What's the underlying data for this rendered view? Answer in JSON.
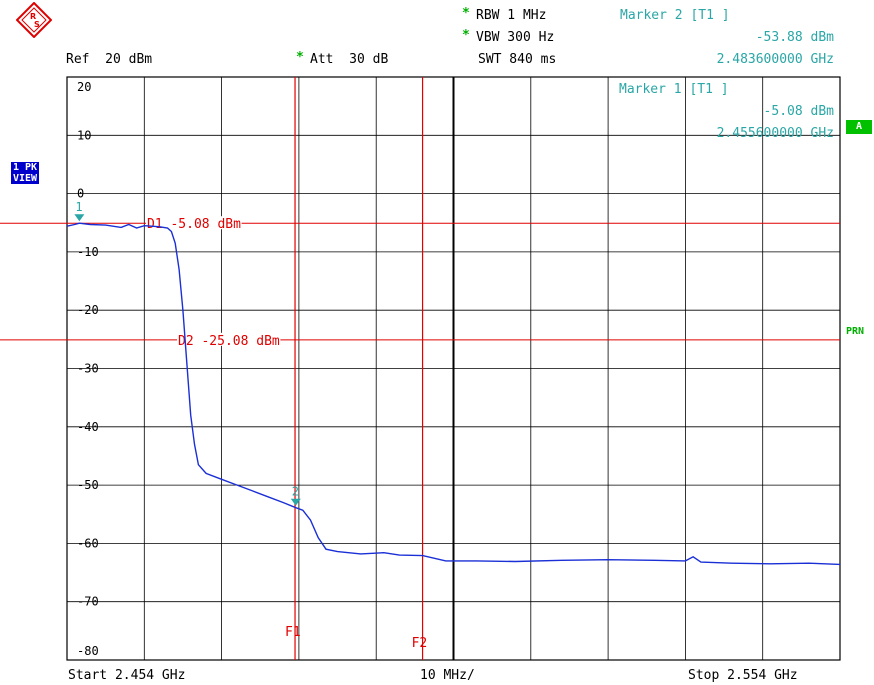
{
  "header": {
    "rbw": "RBW 1 MHz",
    "vbw": "VBW 300 Hz",
    "swt": "SWT 840 ms",
    "ref": "Ref  20 dBm",
    "att": "Att  30 dB",
    "rbw_star": "*",
    "vbw_star": "*",
    "att_star": "*",
    "marker2_title": "Marker 2 [T1 ]",
    "marker2_level": "-53.88 dBm",
    "marker2_freq": "2.483600000 GHz",
    "marker1_title": "Marker 1 [T1 ]",
    "marker1_level": "-5.08 dBm",
    "marker1_freq": "2.455600000 GHz"
  },
  "side_badges": {
    "trace_mode_line1": "1 PK",
    "trace_mode_line2": "VIEW",
    "trace_a": "A",
    "prn": "PRN"
  },
  "footer": {
    "start": "Start 2.454 GHz",
    "span_per_div": "10 MHz/",
    "stop": "Stop 2.554 GHz"
  },
  "colors": {
    "trace": "#1a2fd6",
    "display_line": "#e00000",
    "marker": "#2aa6a6",
    "grid": "#000000",
    "badge_blue": "#0000cc",
    "badge_green": "#00c000"
  },
  "chart_data": {
    "type": "line",
    "title": "",
    "xlabel": "",
    "ylabel": "",
    "xlim": [
      2.454,
      2.554
    ],
    "ylim": [
      -80,
      20
    ],
    "x_unit": "GHz",
    "y_unit": "dBm",
    "grid": true,
    "y_tick_labels": [
      "20",
      "10",
      "0",
      "-10",
      "-20",
      "-30",
      "-40",
      "-50",
      "-60",
      "-70",
      "-80"
    ],
    "display_lines": [
      {
        "label": "D1 -5.08 dBm",
        "y": -5.08
      },
      {
        "label": "D2 -25.08 dBm",
        "y": -25.08
      }
    ],
    "frequency_lines": [
      {
        "label": "F1",
        "x": 2.4835
      },
      {
        "label": "F2",
        "x": 2.5
      }
    ],
    "markers": [
      {
        "label": "1",
        "x": 2.4556,
        "y": -5.08
      },
      {
        "label": "2",
        "x": 2.4836,
        "y": -53.88
      }
    ],
    "series": [
      {
        "x": [
          2.454,
          2.455,
          2.4556,
          2.457,
          2.459,
          2.461,
          2.462,
          2.463,
          2.464,
          2.465,
          2.466,
          2.467,
          2.4675,
          2.468,
          2.4685,
          2.469,
          2.4695,
          2.47,
          2.4705,
          2.471,
          2.472,
          2.474,
          2.476,
          2.478,
          2.48,
          2.482,
          2.4836,
          2.4845,
          2.4855,
          2.4865,
          2.4875,
          2.489,
          2.492,
          2.495,
          2.497,
          2.5,
          2.503,
          2.507,
          2.512,
          2.518,
          2.524,
          2.53,
          2.534,
          2.535,
          2.536,
          2.54,
          2.545,
          2.55,
          2.554
        ],
        "y": [
          -5.6,
          -5.3,
          -5.08,
          -5.3,
          -5.4,
          -5.8,
          -5.3,
          -5.9,
          -5.5,
          -5.6,
          -5.7,
          -5.9,
          -6.5,
          -8.5,
          -13,
          -20,
          -29,
          -38,
          -43,
          -46.5,
          -48,
          -49,
          -50,
          -51,
          -52,
          -53,
          -53.88,
          -54.3,
          -56,
          -59,
          -61,
          -61.4,
          -61.8,
          -61.6,
          -62,
          -62.1,
          -63,
          -63,
          -63.1,
          -62.9,
          -62.8,
          -62.9,
          -63,
          -62.3,
          -63.2,
          -63.4,
          -63.5,
          -63.4,
          -63.6
        ]
      }
    ]
  }
}
